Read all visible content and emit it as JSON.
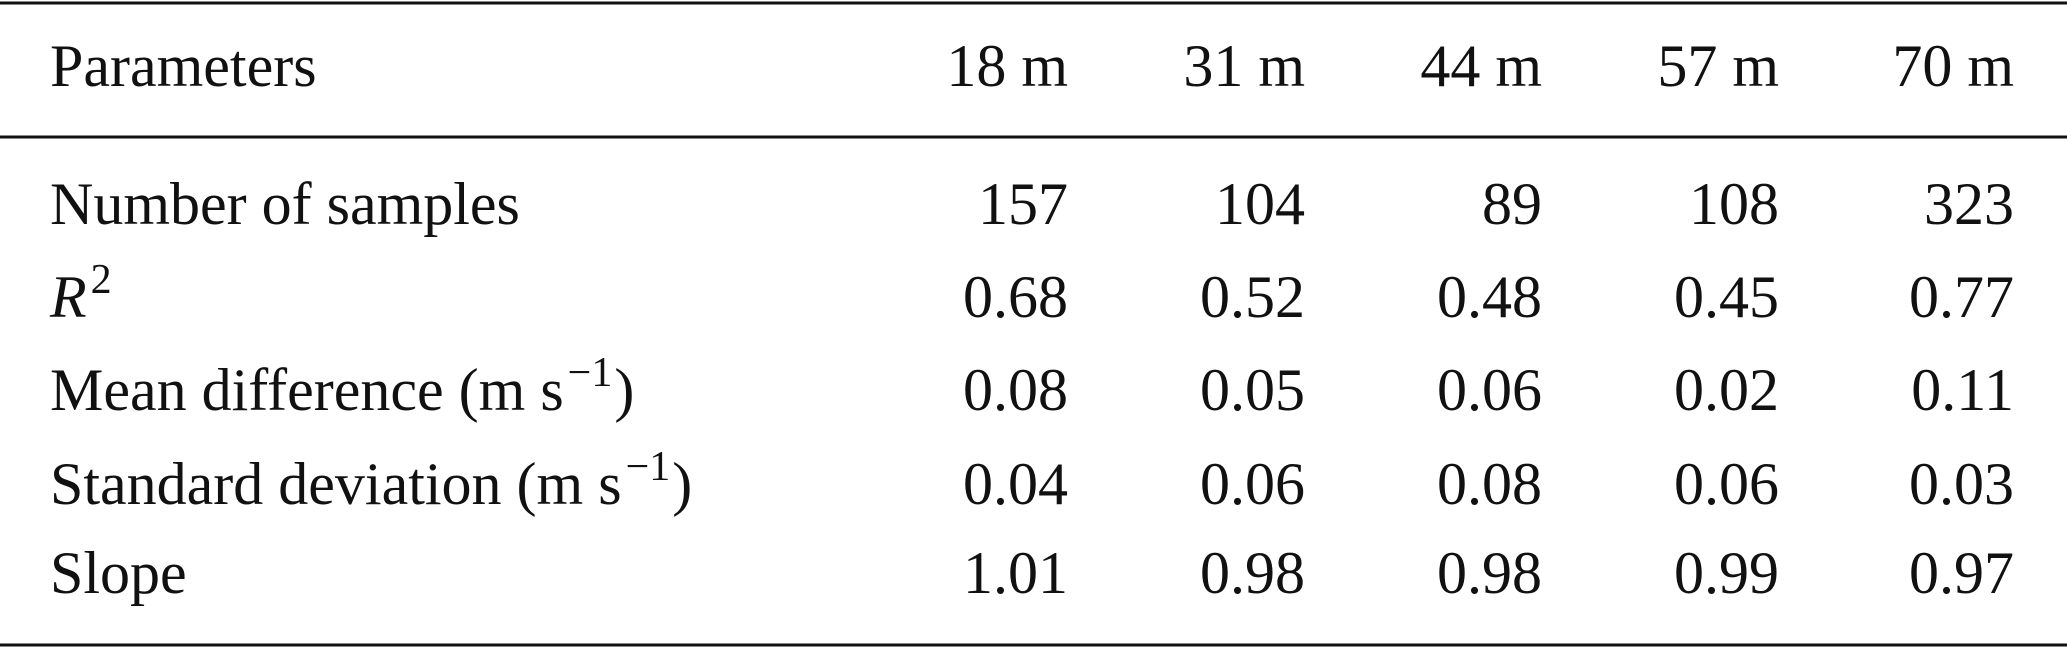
{
  "table": {
    "header": [
      "Parameters",
      "18 m",
      "31 m",
      "44 m",
      "57 m",
      "70 m"
    ],
    "rows": [
      {
        "label": {
          "main": "Number of samples"
        },
        "values": [
          157,
          104,
          89,
          108,
          323
        ]
      },
      {
        "label": {
          "main": "R",
          "sup": "2",
          "italic": true
        },
        "values": [
          0.68,
          0.52,
          0.48,
          0.45,
          0.77
        ]
      },
      {
        "label": {
          "main": "Mean difference (m s",
          "sup": "−1",
          "tail": ")"
        },
        "values": [
          0.08,
          0.05,
          0.06,
          0.02,
          0.11
        ]
      },
      {
        "label": {
          "main": "Standard deviation (m s",
          "sup": "−1",
          "tail": ")"
        },
        "values": [
          0.04,
          0.06,
          0.08,
          0.06,
          0.03
        ]
      },
      {
        "label": {
          "main": "Slope"
        },
        "values": [
          1.01,
          0.98,
          0.98,
          0.99,
          0.97
        ]
      }
    ]
  }
}
